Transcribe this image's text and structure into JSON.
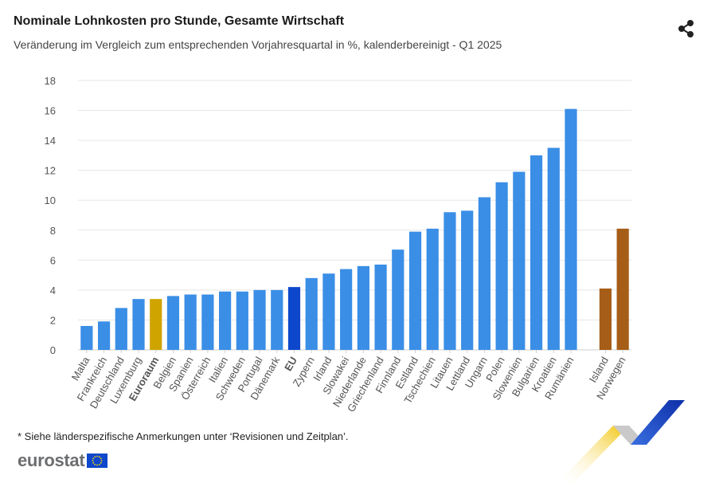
{
  "header": {
    "title": "Nominale Lohnkosten pro Stunde, Gesamte Wirtschaft",
    "subtitle": "Veränderung im Vergleich zum entsprechenden Vorjahresquartal in %, kalenderbereinigt - Q1 2025",
    "share_icon": "share-icon"
  },
  "footnote": "* Siehe länderspezifische Anmerkungen unter ‘Revisionen und Zeitplan’.",
  "logo": {
    "text": "eurostat",
    "icon": "eu-flag-icon"
  },
  "colors": {
    "country": "#3a8ee6",
    "euro_area": "#cfa400",
    "eu": "#0d47cb",
    "efta": "#a65d17",
    "grid": "#e6e6e6",
    "text": "#555555"
  },
  "chart_data": {
    "type": "bar",
    "ylim": [
      0,
      18
    ],
    "yticks": [
      0,
      2,
      4,
      6,
      8,
      10,
      12,
      14,
      16,
      18
    ],
    "grid": true,
    "legend": "none",
    "categories": [
      "Malta",
      "Frankreich",
      "Deutschland",
      "Luxemburg",
      "Euroraum",
      "Belgien",
      "Spanien",
      "Österreich",
      "Italien",
      "Schweden",
      "Portugal",
      "Dänemark",
      "EU",
      "Zypern",
      "Irland",
      "Slowakei",
      "Niederlande",
      "Griechenland",
      "Finnland",
      "Estland",
      "Tschechien",
      "Litauen",
      "Lettland",
      "Ungarn",
      "Polen",
      "Slowenien",
      "Bulgarien",
      "Kroatien",
      "Rumänien",
      "",
      "Island",
      "Norwegen"
    ],
    "values": [
      1.6,
      1.9,
      2.8,
      3.4,
      3.4,
      3.6,
      3.7,
      3.7,
      3.9,
      3.9,
      4.0,
      4.0,
      4.2,
      4.8,
      5.1,
      5.4,
      5.6,
      5.7,
      6.7,
      7.9,
      8.1,
      9.2,
      9.3,
      10.2,
      11.2,
      11.9,
      13.0,
      13.5,
      16.1,
      null,
      4.1,
      8.1
    ],
    "groups": [
      "country",
      "country",
      "country",
      "country",
      "euro_area",
      "country",
      "country",
      "country",
      "country",
      "country",
      "country",
      "country",
      "eu",
      "country",
      "country",
      "country",
      "country",
      "country",
      "country",
      "country",
      "country",
      "country",
      "country",
      "country",
      "country",
      "country",
      "country",
      "country",
      "country",
      "gap",
      "efta",
      "efta"
    ],
    "bold_labels": [
      "Euroraum",
      "EU"
    ]
  }
}
